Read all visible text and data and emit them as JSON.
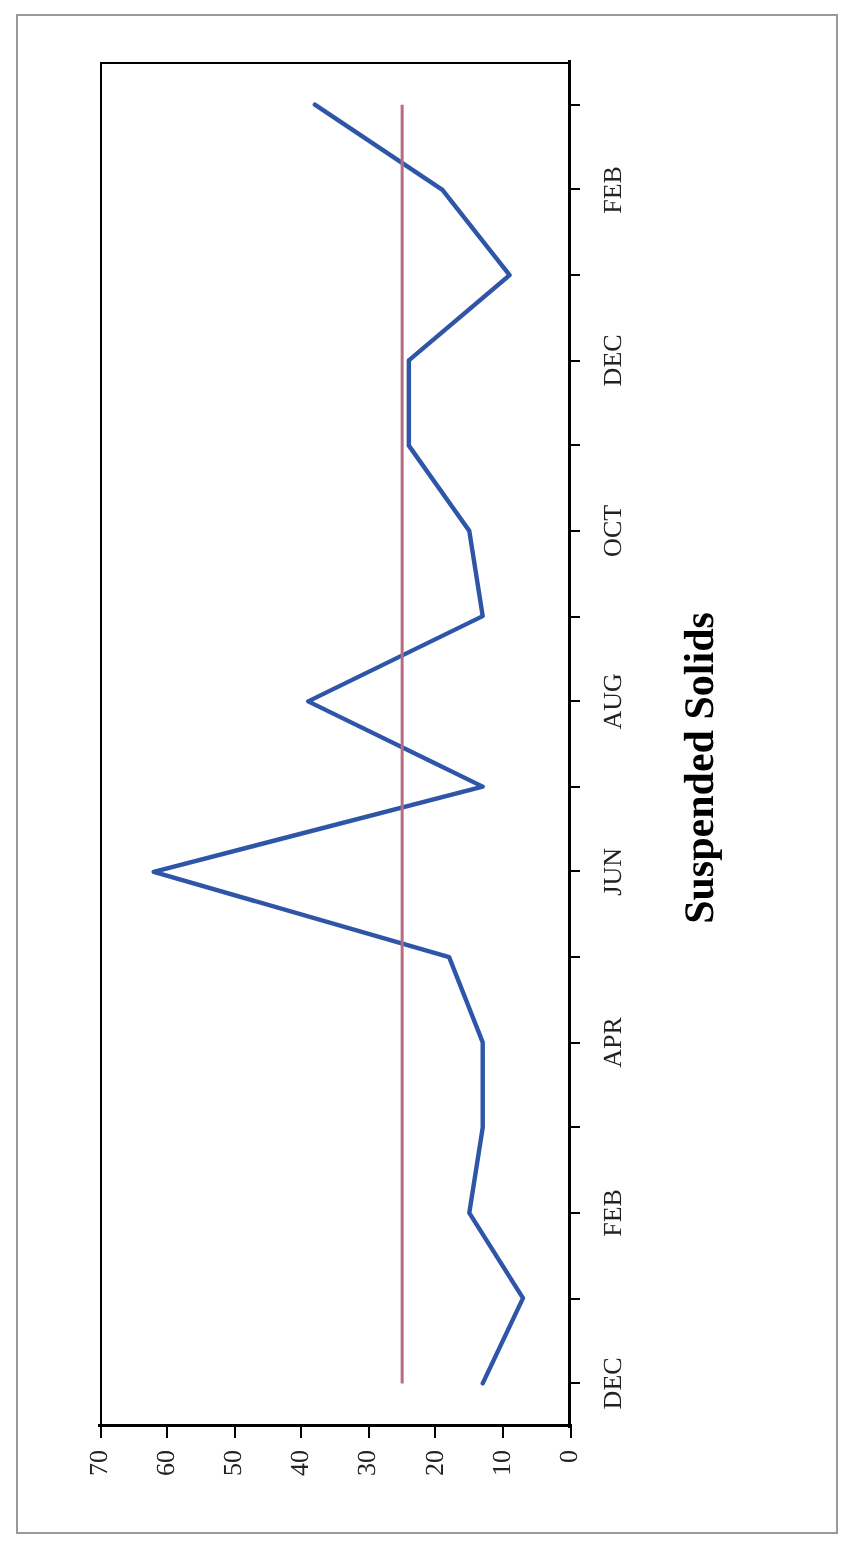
{
  "chart_data": {
    "type": "line",
    "orientation": "horizontal",
    "title": "Suspended Solids",
    "categories": [
      null,
      "FEB",
      null,
      "DEC",
      null,
      "OCT",
      null,
      "AUG",
      null,
      "JUN",
      null,
      "APR",
      null,
      "FEB",
      null,
      "DEC"
    ],
    "values": [
      38,
      19,
      9,
      24,
      24,
      15,
      13,
      39,
      13,
      62,
      18,
      13,
      13,
      15,
      7,
      13
    ],
    "color": "#2f55a8",
    "xlim": [
      70,
      0
    ],
    "xticks": [
      70,
      60,
      50,
      40,
      30,
      20,
      10,
      0
    ],
    "grid": false,
    "marker": "none",
    "line_style": "solid",
    "ref_lines": [
      {
        "axis": "x",
        "value": 25,
        "color": "#b86a80"
      }
    ]
  }
}
